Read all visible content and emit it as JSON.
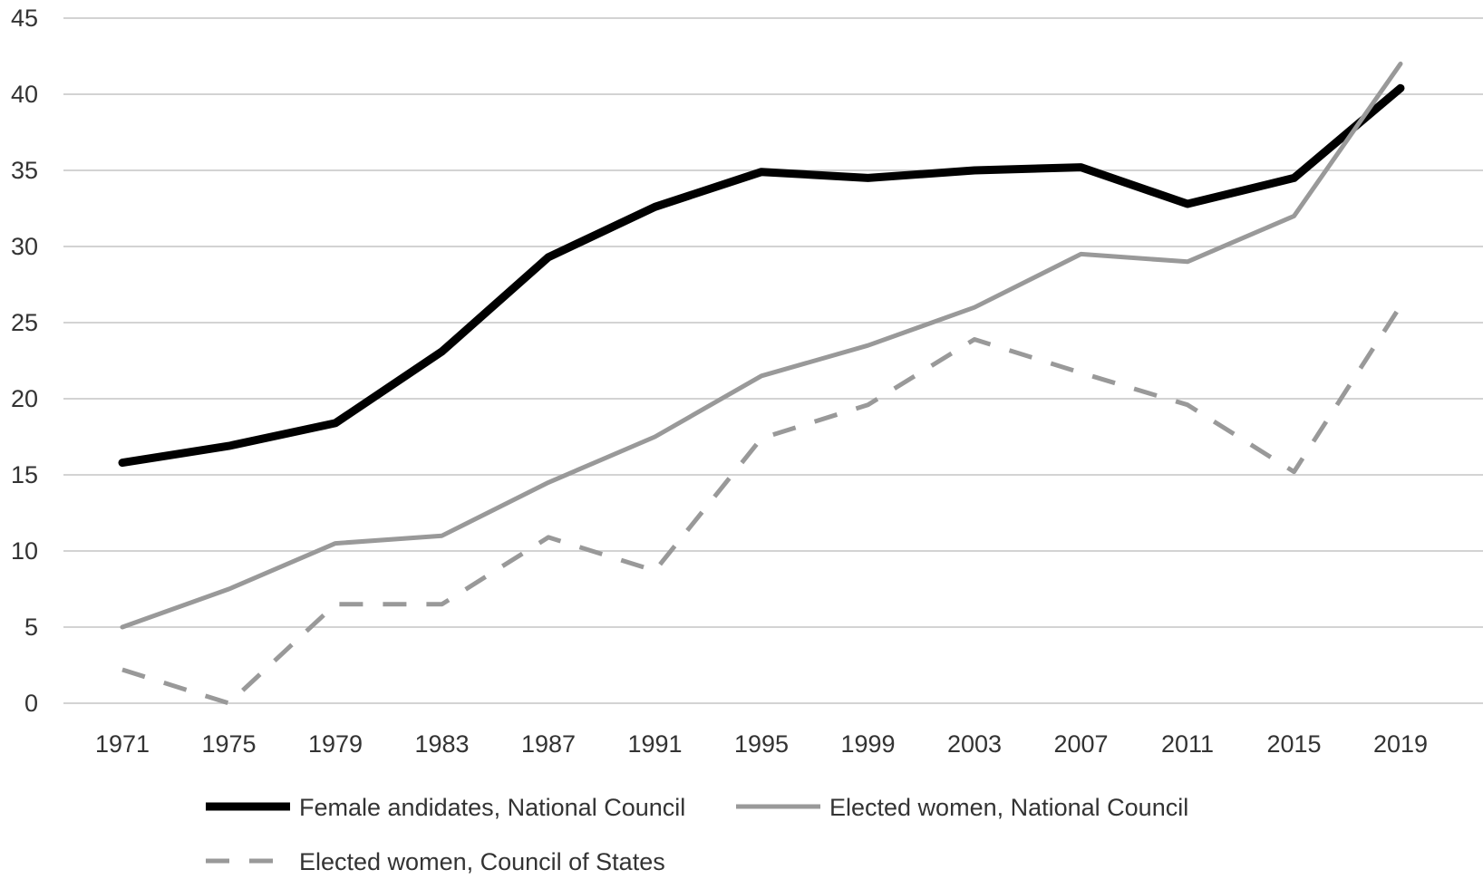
{
  "chart_data": {
    "type": "line",
    "title": "",
    "xlabel": "",
    "ylabel": "",
    "categories": [
      "1971",
      "1975",
      "1979",
      "1983",
      "1987",
      "1991",
      "1995",
      "1999",
      "2003",
      "2007",
      "2011",
      "2015",
      "2019"
    ],
    "ylim": [
      0,
      45
    ],
    "yticks": [
      "0",
      "5",
      "10",
      "15",
      "20",
      "25",
      "30",
      "35",
      "40",
      "45"
    ],
    "grid": "horizontal",
    "legend_position": "bottom",
    "series": [
      {
        "name": "Female andidates, National Council",
        "values": [
          15.8,
          16.9,
          18.4,
          23.1,
          29.3,
          32.6,
          34.9,
          34.5,
          35.0,
          35.2,
          32.8,
          34.5,
          40.4
        ],
        "color": "#000000",
        "style": "solid"
      },
      {
        "name": "Elected women, National Council",
        "values": [
          5.0,
          7.5,
          10.5,
          11.0,
          14.5,
          17.5,
          21.5,
          23.5,
          26.0,
          29.5,
          29.0,
          32.0,
          42.0
        ],
        "color": "#999999",
        "style": "solid"
      },
      {
        "name": "Elected women, Council of States",
        "values": [
          2.2,
          0.0,
          6.5,
          6.5,
          10.9,
          8.7,
          17.4,
          19.6,
          23.9,
          21.7,
          19.6,
          15.2,
          26.1
        ],
        "color": "#999999",
        "style": "dashed"
      }
    ]
  }
}
